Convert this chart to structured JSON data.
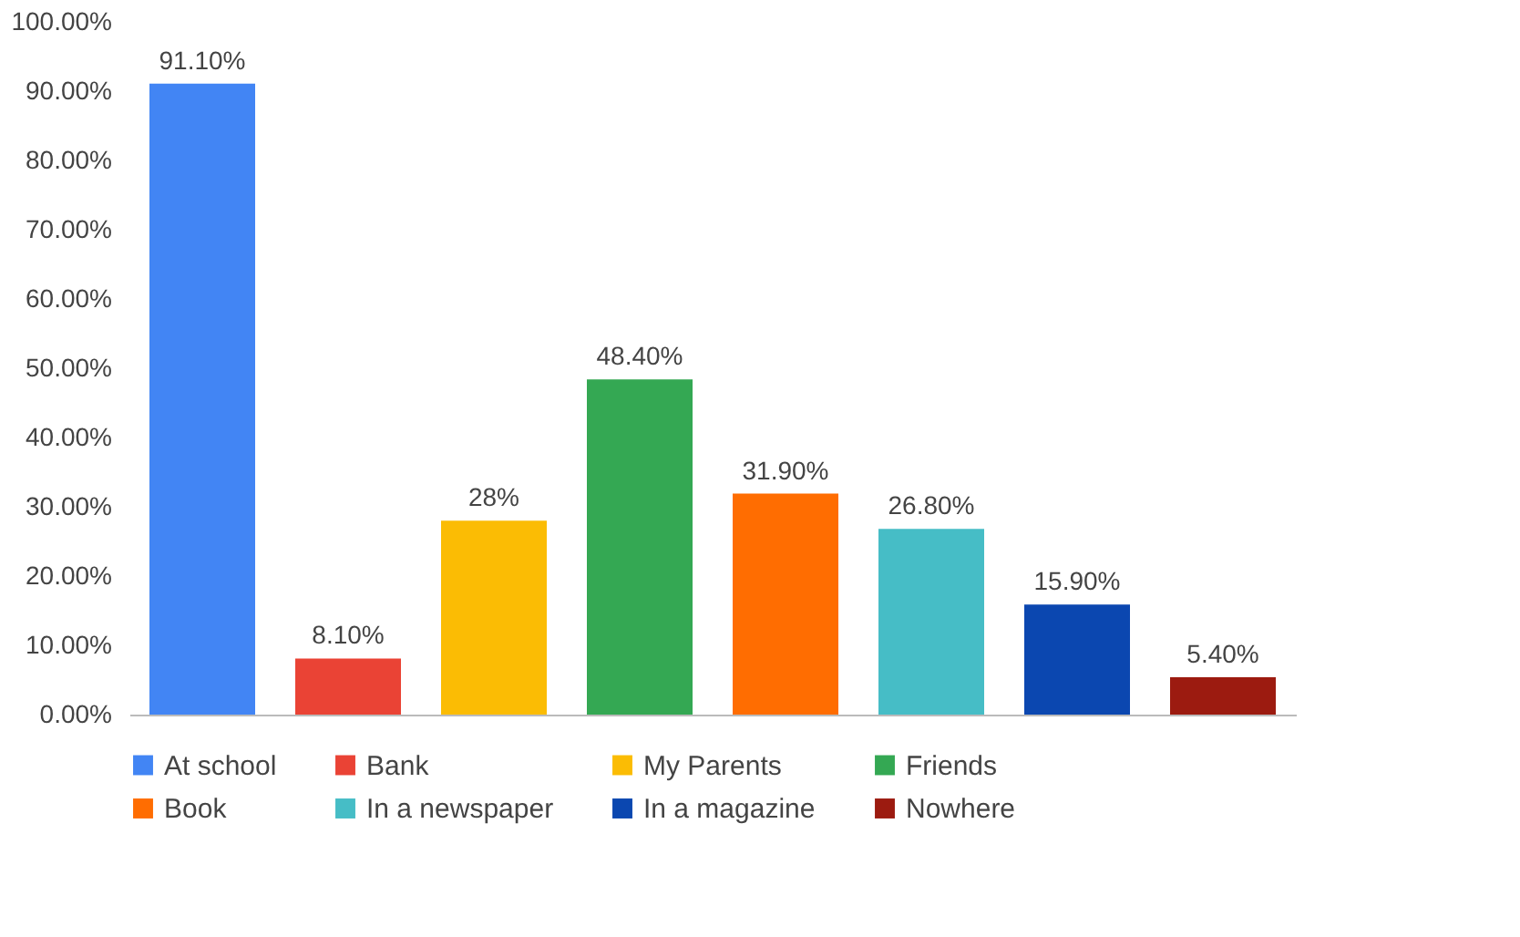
{
  "chart_data": {
    "type": "bar",
    "categories": [
      null,
      null,
      null,
      null,
      null,
      null,
      null,
      null
    ],
    "series": [
      {
        "name": "At school",
        "color": "#4285f4",
        "values": [
          91.1,
          null,
          null,
          null,
          null,
          null,
          null,
          null
        ],
        "value_labels": [
          "91.10%",
          null,
          null,
          null,
          null,
          null,
          null,
          null
        ]
      },
      {
        "name": "Bank",
        "color": "#ea4335",
        "values": [
          null,
          8.1,
          null,
          null,
          null,
          null,
          null,
          null
        ],
        "value_labels": [
          null,
          "8.10%",
          null,
          null,
          null,
          null,
          null,
          null
        ]
      },
      {
        "name": "My Parents",
        "color": "#fbbc04",
        "values": [
          null,
          null,
          28,
          null,
          null,
          null,
          null,
          null
        ],
        "value_labels": [
          null,
          null,
          "28%",
          null,
          null,
          null,
          null,
          null
        ]
      },
      {
        "name": "Friends",
        "color": "#34a853",
        "values": [
          null,
          null,
          null,
          48.4,
          null,
          null,
          null,
          null
        ],
        "value_labels": [
          null,
          null,
          null,
          "48.40%",
          null,
          null,
          null,
          null
        ]
      },
      {
        "name": "Book",
        "color": "#ff6d01",
        "values": [
          null,
          null,
          null,
          null,
          31.9,
          null,
          null,
          null
        ],
        "value_labels": [
          null,
          null,
          null,
          null,
          "31.90%",
          null,
          null,
          null
        ]
      },
      {
        "name": "In a newspaper",
        "color": "#46bdc6",
        "values": [
          null,
          null,
          null,
          null,
          null,
          26.8,
          null,
          null
        ],
        "value_labels": [
          null,
          null,
          null,
          null,
          null,
          "26.80%",
          null,
          null
        ]
      },
      {
        "name": "In a magazine",
        "color": "#0b47b0",
        "values": [
          null,
          null,
          null,
          null,
          null,
          null,
          15.9,
          null
        ],
        "value_labels": [
          null,
          null,
          null,
          null,
          null,
          null,
          "15.90%",
          null
        ]
      },
      {
        "name": "Nowhere",
        "color": "#9c1b10",
        "values": [
          null,
          null,
          null,
          null,
          null,
          null,
          null,
          5.4
        ],
        "value_labels": [
          null,
          null,
          null,
          null,
          null,
          null,
          null,
          "5.40%"
        ]
      }
    ],
    "ylim": [
      0,
      100
    ],
    "yticks": [
      {
        "value": 0,
        "label": "0.00%"
      },
      {
        "value": 10,
        "label": "10.00%"
      },
      {
        "value": 20,
        "label": "20.00%"
      },
      {
        "value": 30,
        "label": "30.00%"
      },
      {
        "value": 40,
        "label": "40.00%"
      },
      {
        "value": 50,
        "label": "50.00%"
      },
      {
        "value": 60,
        "label": "60.00%"
      },
      {
        "value": 70,
        "label": "70.00%"
      },
      {
        "value": 80,
        "label": "80.00%"
      },
      {
        "value": 90,
        "label": "90.00%"
      },
      {
        "value": 100,
        "label": "100.00%"
      }
    ],
    "tick_labels": "y",
    "legend": "bottom",
    "grid": false
  }
}
